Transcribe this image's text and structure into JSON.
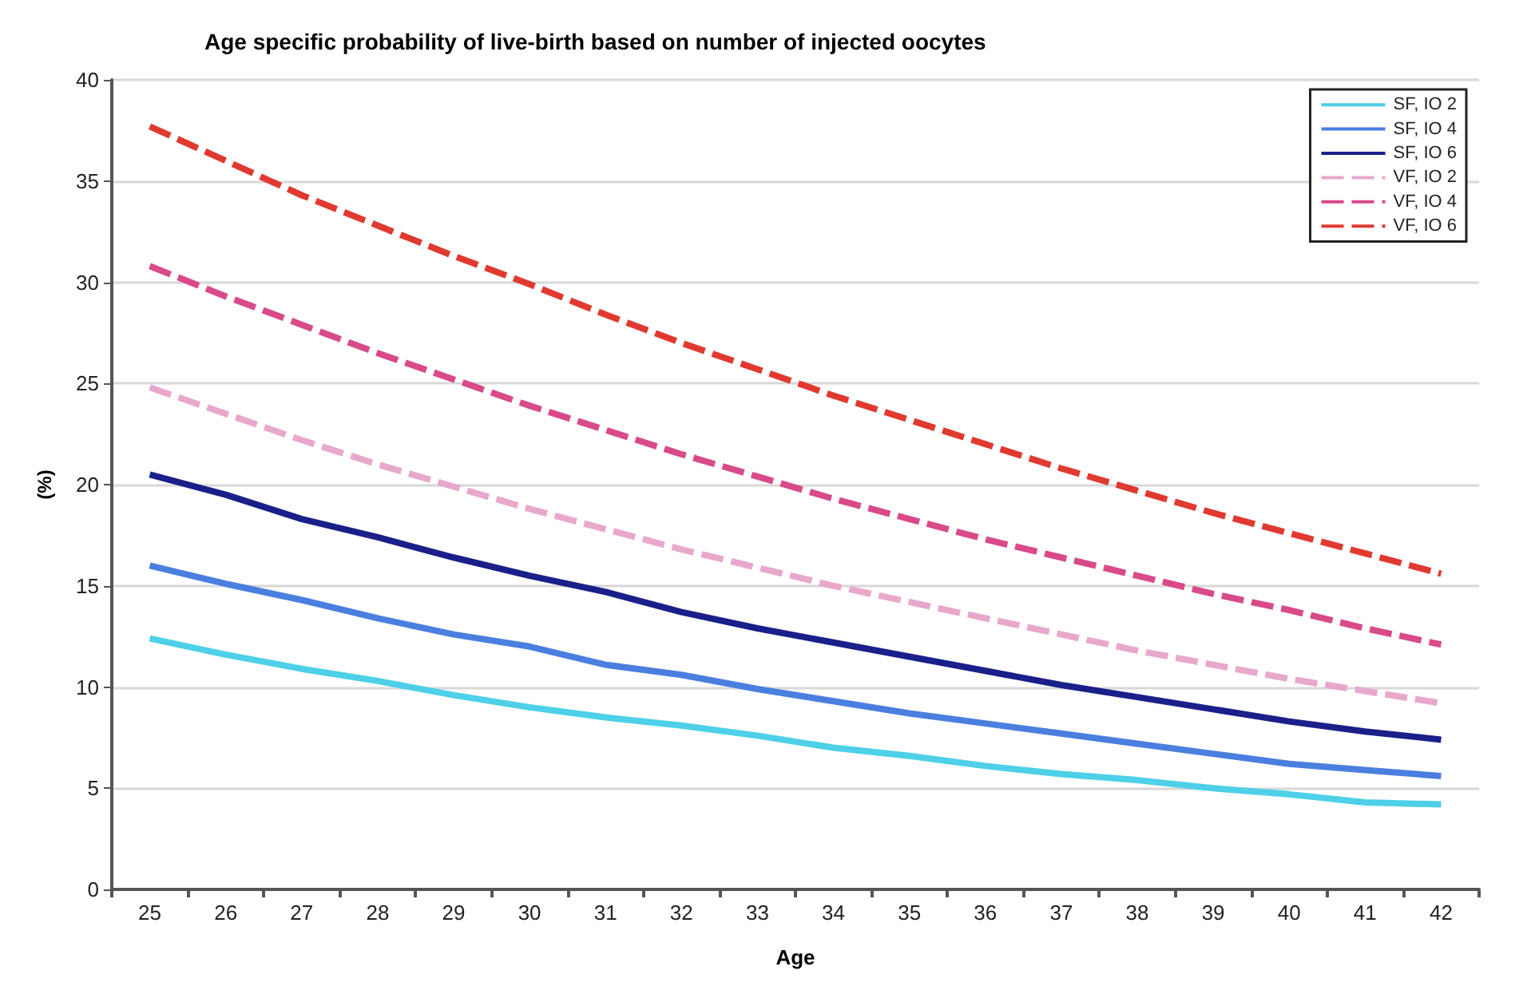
{
  "chart_data": {
    "type": "line",
    "title": "Age specific probability of live-birth based on number of injected oocytes",
    "xlabel": "Age",
    "ylabel": "(%)",
    "categories": [
      "25",
      "26",
      "27",
      "28",
      "29",
      "30",
      "31",
      "32",
      "33",
      "34",
      "35",
      "36",
      "37",
      "38",
      "39",
      "40",
      "41",
      "42"
    ],
    "series": [
      {
        "name": "SF, IO 2",
        "color": "#4dd0e8",
        "line_style": "solid",
        "values": [
          12.4,
          11.6,
          10.9,
          10.3,
          9.6,
          9.0,
          8.5,
          8.1,
          7.6,
          7.0,
          6.6,
          6.1,
          5.7,
          5.4,
          5.0,
          4.7,
          4.3,
          4.2
        ]
      },
      {
        "name": "SF, IO 4",
        "color": "#4a7fe0",
        "line_style": "solid",
        "values": [
          16.0,
          15.1,
          14.3,
          13.4,
          12.6,
          12.0,
          11.1,
          10.6,
          9.9,
          9.3,
          8.7,
          8.2,
          7.7,
          7.2,
          6.7,
          6.2,
          5.9,
          5.6
        ]
      },
      {
        "name": "SF, IO 6",
        "color": "#1a1f8a",
        "line_style": "solid",
        "values": [
          20.5,
          19.5,
          18.3,
          17.4,
          16.4,
          15.5,
          14.7,
          13.7,
          12.9,
          12.2,
          11.5,
          10.8,
          10.1,
          9.5,
          8.9,
          8.3,
          7.8,
          7.4
        ]
      },
      {
        "name": "VF, IO 2",
        "color": "#e8a8cc",
        "line_style": "dashed",
        "values": [
          24.8,
          23.5,
          22.2,
          21.0,
          19.9,
          18.8,
          17.8,
          16.8,
          15.9,
          15.0,
          14.2,
          13.4,
          12.6,
          11.8,
          11.1,
          10.4,
          9.8,
          9.2
        ]
      },
      {
        "name": "VF, IO 4",
        "color": "#d94a8a",
        "line_style": "dashed",
        "values": [
          30.8,
          29.3,
          27.9,
          26.5,
          25.2,
          23.9,
          22.7,
          21.5,
          20.4,
          19.3,
          18.3,
          17.3,
          16.4,
          15.5,
          14.6,
          13.8,
          12.9,
          12.1
        ]
      },
      {
        "name": "VF, IO 6",
        "color": "#e03a30",
        "line_style": "dashed",
        "values": [
          37.7,
          36.0,
          34.3,
          32.8,
          31.3,
          29.9,
          28.4,
          27.0,
          25.7,
          24.4,
          23.2,
          22.0,
          20.8,
          19.7,
          18.6,
          17.6,
          16.6,
          15.6
        ]
      }
    ],
    "ylim": [
      0,
      40
    ],
    "yticks": [
      0,
      5,
      10,
      15,
      20,
      25,
      30,
      35,
      40
    ],
    "grid": "y",
    "legend": "top right",
    "marker": "none"
  }
}
